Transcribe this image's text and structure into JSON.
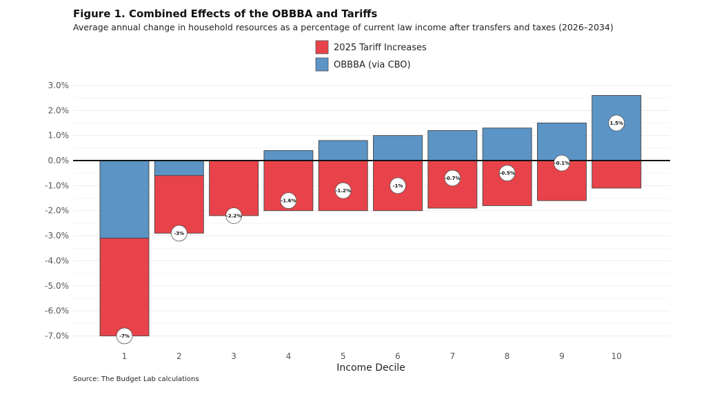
{
  "chart_data": {
    "type": "bar",
    "stacked": true,
    "title": "Figure 1. Combined Effects of the OBBBA and Tariffs",
    "subtitle": "Average annual change in household resources as a percentage of current law income after transfers and taxes (2026–2034)",
    "xlabel": "Income Decile",
    "ylabel": "",
    "categories": [
      "1",
      "2",
      "3",
      "4",
      "5",
      "6",
      "7",
      "8",
      "9",
      "10"
    ],
    "series": [
      {
        "name": "OBBBA (via CBO)",
        "color": "#5b94c5",
        "values": [
          -3.1,
          -0.6,
          0.0,
          0.4,
          0.8,
          1.0,
          1.2,
          1.3,
          1.5,
          2.6
        ]
      },
      {
        "name": "2025 Tariff Increases",
        "color": "#e8434a",
        "values": [
          -3.9,
          -2.3,
          -2.2,
          -2.0,
          -2.0,
          -2.0,
          -1.9,
          -1.8,
          -1.6,
          -1.1
        ]
      }
    ],
    "net_labels": [
      "-7%",
      "-3%",
      "-2.2%",
      "-1.6%",
      "-1.2%",
      "-1%",
      "-0.7%",
      "-0.5%",
      "-0.1%",
      "1.5%"
    ],
    "net_values": [
      -7.0,
      -2.9,
      -2.2,
      -1.6,
      -1.2,
      -1.0,
      -0.7,
      -0.5,
      -0.1,
      1.5
    ],
    "yticks": [
      "3.0%",
      "2.0%",
      "1.0%",
      "0.0%",
      "-1.0%",
      "-2.0%",
      "-3.0%",
      "-4.0%",
      "-5.0%",
      "-6.0%",
      "-7.0%"
    ],
    "ytick_values": [
      3,
      2,
      1,
      0,
      -1,
      -2,
      -3,
      -4,
      -5,
      -6,
      -7
    ],
    "ylim": [
      -7.4,
      3.3
    ],
    "grid": true,
    "legend": {
      "placement": "top-center",
      "entries": [
        {
          "label": "2025 Tariff Increases",
          "color": "#e8434a"
        },
        {
          "label": "OBBBA (via CBO)",
          "color": "#5b94c5"
        }
      ]
    },
    "source": "Source: The Budget Lab calculations"
  }
}
